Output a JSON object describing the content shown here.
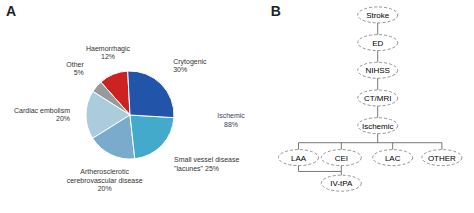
{
  "chart_data": [
    {
      "type": "pie",
      "title": "A",
      "categories": [
        "Haemorrhagic\n12%",
        "Other\n5%",
        "Cardiac embolism\n20%",
        "Artherosclerotic\ncerebrovascular disease\n20%",
        "Small vessel disease\n\"lacunes\" 25%",
        "Crytogenic\n30%"
      ],
      "values": [
        12,
        5,
        20,
        20,
        25,
        30
      ],
      "colors": [
        "#cc2222",
        "#999999",
        "#aaccdd",
        "#7aabcc",
        "#44aacc",
        "#2255aa"
      ],
      "annotations": [
        "Ischemic\n88%"
      ]
    },
    {
      "type": "flow",
      "title": "B",
      "categories": [
        "Stroke",
        "ED",
        "NIHSS",
        "CT/MRI",
        "Ischemic"
      ],
      "annotations": [
        "LAA",
        "CEI",
        "LAC",
        "OTHER",
        "IV-tPA"
      ]
    }
  ]
}
